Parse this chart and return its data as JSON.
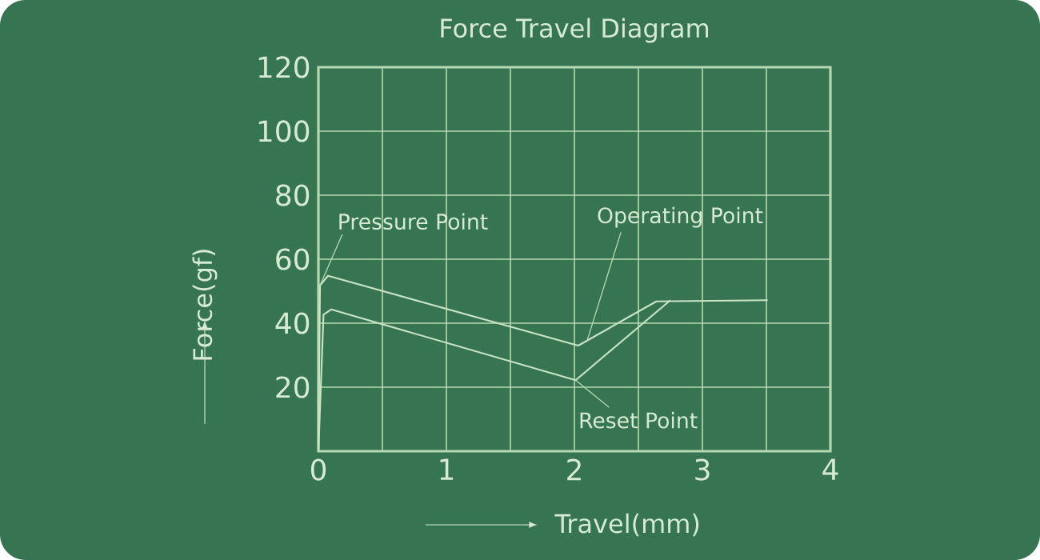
{
  "chart_data": {
    "type": "line",
    "title": "Force Travel Diagram",
    "xlabel": "Travel(mm)",
    "ylabel": "Force(gf)",
    "xlim": [
      0,
      4
    ],
    "ylim": [
      0,
      120
    ],
    "xticks": [
      0,
      1,
      2,
      3,
      4
    ],
    "yticks": [
      {
        "value": 0,
        "label": null
      },
      20,
      40,
      60,
      80,
      100,
      120
    ],
    "grid": true,
    "series": [
      {
        "color": "#c9e4c5",
        "x": [
          0,
          0.0125,
          0.075,
          2.03,
          2.64,
          3.51
        ],
        "values": [
          0,
          51.8,
          54.8,
          33,
          46.8,
          47.2
        ]
      },
      {
        "color": "#c9e4c5",
        "x": [
          0,
          0.04,
          0.1,
          2.01,
          2.75
        ],
        "values": [
          0,
          42.7,
          44.3,
          22.2,
          47.2
        ]
      }
    ],
    "annotations": [
      {
        "text": "Pressure Point",
        "x": 0.0125,
        "y": 51.8
      },
      {
        "text": "Operating Point",
        "x": 2.1,
        "y": 34.6
      },
      {
        "text": "Reset Point",
        "x": 2.01,
        "y": 22.2
      }
    ]
  }
}
